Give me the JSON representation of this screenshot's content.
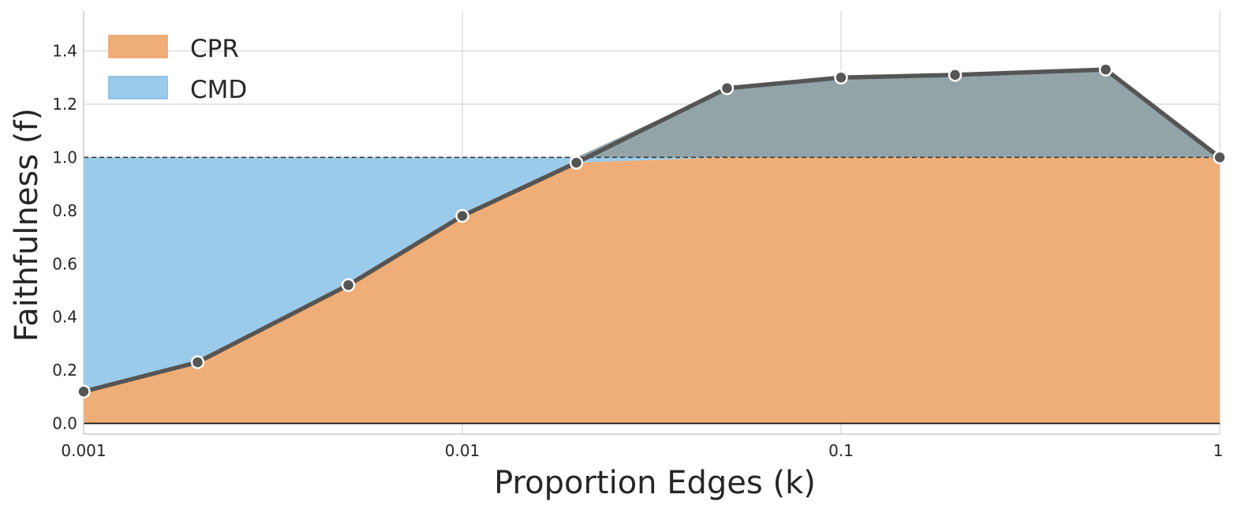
{
  "chart_data": {
    "type": "area",
    "xscale": "log",
    "xlabel": "Proportion Edges (k)",
    "ylabel": "Faithfulness (f)",
    "xlim": [
      0.001,
      1
    ],
    "ylim": [
      -0.04,
      1.55
    ],
    "x_ticks": [
      0.001,
      0.01,
      0.1,
      1
    ],
    "x_tick_labels": [
      "0.001",
      "0.01",
      "0.1",
      "1"
    ],
    "y_ticks": [
      0.0,
      0.2,
      0.4,
      0.6,
      0.8,
      1.0,
      1.2,
      1.4
    ],
    "y_tick_labels": [
      "0.0",
      "0.2",
      "0.4",
      "0.6",
      "0.8",
      "1.0",
      "1.2",
      "1.4"
    ],
    "grid": true,
    "reference_line": 1.0,
    "legend_position": "top-left",
    "legend": [
      {
        "label": "CPR",
        "color": "#EFAE78"
      },
      {
        "label": "CMD",
        "color": "#9BCBEB"
      }
    ],
    "series": [
      {
        "x": [
          0.001,
          0.002,
          0.005,
          0.01,
          0.02,
          0.05,
          0.1,
          0.2,
          0.5,
          1.0
        ],
        "values": [
          0.12,
          0.23,
          0.52,
          0.78,
          0.98,
          1.26,
          1.3,
          1.31,
          1.33,
          1.0
        ]
      }
    ],
    "colors": {
      "line": "#555555",
      "above_one_fill": "#92A4A8",
      "cpr_fill": "#EFAE78",
      "cmd_fill": "#9BCBEB"
    }
  }
}
